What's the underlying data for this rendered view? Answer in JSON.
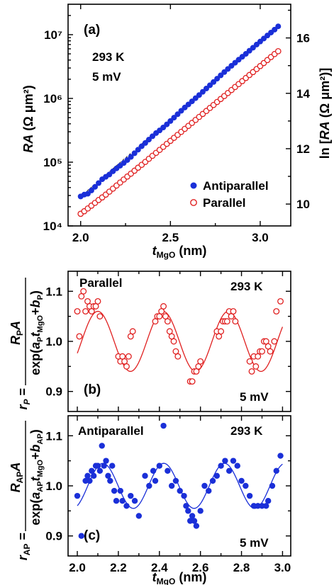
{
  "colors": {
    "red": "#e02020",
    "blue": "#1a2fd8",
    "fit_red": "#e02020",
    "fit_blue": "#1a2fd8"
  },
  "chart_data": [
    {
      "id": "a",
      "type": "scatter",
      "panel_label": "(a)",
      "annotations": [
        "293 K",
        "5 mV"
      ],
      "xlabel_main": "t",
      "xlabel_sub": "MgO",
      "xlabel_unit": " (nm)",
      "ylabel_left": "RA (Ω μm²)",
      "ylabel_right": "ln [RA (Ω μm²)]",
      "xlim": [
        1.93,
        3.17
      ],
      "ylim": [
        10000,
        30000000
      ],
      "yscale": "log",
      "x_ticks": [
        "2.0",
        "2.5",
        "3.0"
      ],
      "x_tick_values": [
        2.0,
        2.5,
        3.0
      ],
      "y_ticks_left": [
        "10⁴",
        "10⁵",
        "10⁶",
        "10⁷"
      ],
      "y_tick_values_left": [
        10000,
        100000,
        1000000,
        10000000
      ],
      "y_ticks_right": [
        "10",
        "12",
        "14",
        "16"
      ],
      "y_tick_values_right": [
        10,
        12,
        14,
        16
      ],
      "legend_position": "bottom-right",
      "series": [
        {
          "name": "Antiparallel",
          "marker": "filled-circle",
          "color": "#1a2fd8",
          "x": [
            2.0,
            2.02,
            2.04,
            2.06,
            2.08,
            2.1,
            2.12,
            2.14,
            2.16,
            2.18,
            2.2,
            2.22,
            2.24,
            2.26,
            2.28,
            2.3,
            2.32,
            2.34,
            2.36,
            2.38,
            2.4,
            2.42,
            2.44,
            2.46,
            2.48,
            2.5,
            2.52,
            2.54,
            2.56,
            2.58,
            2.6,
            2.62,
            2.64,
            2.66,
            2.68,
            2.7,
            2.72,
            2.74,
            2.76,
            2.78,
            2.8,
            2.82,
            2.84,
            2.86,
            2.88,
            2.9,
            2.92,
            2.94,
            2.96,
            2.98,
            3.0,
            3.02,
            3.04,
            3.06,
            3.08,
            3.1
          ],
          "y": [
            29000,
            31000,
            32000,
            36000,
            41000,
            47000,
            54000,
            59000,
            64000,
            72000,
            80000,
            88000,
            97000,
            108000,
            121000,
            138000,
            157000,
            178000,
            200000,
            226000,
            255000,
            286000,
            315000,
            350000,
            392000,
            442000,
            500000,
            565000,
            640000,
            720000,
            805000,
            900000,
            1010000,
            1130000,
            1270000,
            1430000,
            1610000,
            1810000,
            2040000,
            2300000,
            2590000,
            2900000,
            3250000,
            3630000,
            4050000,
            4500000,
            5000000,
            5600000,
            6250000,
            7000000,
            7800000,
            8700000,
            9700000,
            10800000,
            12000000,
            13500000
          ]
        },
        {
          "name": "Parallel",
          "marker": "open-circle",
          "color": "#e02020",
          "x": [
            2.0,
            2.02,
            2.04,
            2.06,
            2.08,
            2.1,
            2.12,
            2.14,
            2.16,
            2.18,
            2.2,
            2.22,
            2.24,
            2.26,
            2.28,
            2.3,
            2.32,
            2.34,
            2.36,
            2.38,
            2.4,
            2.42,
            2.44,
            2.46,
            2.48,
            2.5,
            2.52,
            2.54,
            2.56,
            2.58,
            2.6,
            2.62,
            2.64,
            2.66,
            2.68,
            2.7,
            2.72,
            2.74,
            2.76,
            2.78,
            2.8,
            2.82,
            2.84,
            2.86,
            2.88,
            2.9,
            2.92,
            2.94,
            2.96,
            2.98,
            3.0,
            3.02,
            3.04,
            3.06,
            3.08,
            3.1
          ],
          "y": [
            15500,
            17000,
            18800,
            20800,
            23000,
            25500,
            28000,
            31000,
            34500,
            38500,
            43000,
            48000,
            53500,
            59500,
            66000,
            73500,
            82000,
            91000,
            101000,
            113000,
            126000,
            140000,
            156000,
            174000,
            194000,
            216000,
            241000,
            268000,
            299000,
            333000,
            371000,
            413000,
            460000,
            513000,
            571000,
            636000,
            709000,
            790000,
            880000,
            980000,
            1090000,
            1215000,
            1355000,
            1510000,
            1680000,
            1870000,
            2090000,
            2330000,
            2590000,
            2890000,
            3220000,
            3590000,
            4000000,
            4460000,
            4970000,
            5500000
          ]
        }
      ]
    },
    {
      "id": "b",
      "type": "scatter",
      "panel_label": "(b)",
      "title": "Parallel",
      "annotations": [
        "293 K",
        "5 mV"
      ],
      "ylabel_prefix": "r",
      "ylabel_prefix_sub": "P",
      "ylabel_numerator": "R",
      "ylabel_numerator_sub": "P",
      "ylabel_numerator_rest": "A",
      "ylabel_denominator": "exp(a",
      "ylabel_denominator_sub1": "P",
      "ylabel_denominator_t": "t",
      "ylabel_denominator_sub2": "MgO",
      "ylabel_denominator_plus": "+b",
      "ylabel_denominator_sub3": "P",
      "ylabel_denominator_end": ")",
      "xlim": [
        1.955,
        3.04
      ],
      "ylim": [
        0.86,
        1.14
      ],
      "y_ticks": [
        "0.9",
        "1.0",
        "1.1"
      ],
      "y_tick_values": [
        0.9,
        1.0,
        1.1
      ],
      "marker": "open-circle",
      "color": "#e02020",
      "x": [
        2.0,
        2.01,
        2.02,
        2.03,
        2.04,
        2.05,
        2.06,
        2.07,
        2.08,
        2.09,
        2.1,
        2.11,
        2.2,
        2.21,
        2.22,
        2.23,
        2.24,
        2.25,
        2.26,
        2.27,
        2.38,
        2.39,
        2.4,
        2.41,
        2.42,
        2.43,
        2.44,
        2.45,
        2.46,
        2.47,
        2.48,
        2.49,
        2.55,
        2.56,
        2.57,
        2.58,
        2.59,
        2.6,
        2.68,
        2.69,
        2.7,
        2.71,
        2.72,
        2.73,
        2.74,
        2.75,
        2.76,
        2.77,
        2.84,
        2.85,
        2.86,
        2.87,
        2.88,
        2.89,
        2.9,
        2.91,
        2.92,
        2.93,
        2.94,
        2.96,
        2.97,
        2.99
      ],
      "y": [
        1.06,
        1.01,
        1.09,
        1.1,
        1.06,
        1.08,
        1.07,
        1.06,
        1.07,
        1.07,
        1.08,
        1.05,
        0.97,
        0.96,
        0.97,
        0.96,
        0.95,
        0.97,
        1.01,
        1.02,
        1.04,
        1.05,
        1.05,
        1.06,
        1.07,
        1.05,
        1.04,
        1.02,
        1.01,
        1.0,
        0.98,
        0.97,
        0.92,
        0.92,
        0.94,
        0.94,
        0.95,
        0.96,
        1.02,
        1.01,
        1.02,
        1.04,
        1.04,
        1.04,
        1.06,
        1.05,
        1.06,
        1.04,
        0.96,
        0.94,
        0.97,
        0.95,
        0.97,
        0.98,
        0.98,
        1.0,
        1.0,
        0.99,
        0.98,
        1.0,
        1.06,
        1.08
      ],
      "fit": {
        "mean": 1.0,
        "amplitude": 0.06,
        "period": 0.318,
        "peak_x": 2.1,
        "color": "#e02020"
      }
    },
    {
      "id": "c",
      "type": "scatter",
      "panel_label": "(c)",
      "title": "Antiparallel",
      "annotations": [
        "293 K",
        "5 mV"
      ],
      "ylabel_prefix": "r",
      "ylabel_prefix_sub": "AP",
      "ylabel_numerator": "R",
      "ylabel_numerator_sub": "AP",
      "ylabel_numerator_rest": "A",
      "ylabel_denominator": "exp(a",
      "ylabel_denominator_sub1": "AP",
      "ylabel_denominator_t": "t",
      "ylabel_denominator_sub2": "MgO",
      "ylabel_denominator_plus": "+b",
      "ylabel_denominator_sub3": "AP",
      "ylabel_denominator_end": ")",
      "xlabel_main": "t",
      "xlabel_sub": "MgO",
      "xlabel_unit": " (nm)",
      "xlim": [
        1.955,
        3.04
      ],
      "ylim": [
        0.86,
        1.14
      ],
      "x_ticks": [
        "2.0",
        "2.2",
        "2.4",
        "2.6",
        "2.8",
        "3.0"
      ],
      "x_tick_values": [
        2.0,
        2.2,
        2.4,
        2.6,
        2.8,
        3.0
      ],
      "y_ticks": [
        "0.9",
        "1.0",
        "1.1"
      ],
      "y_tick_values": [
        0.9,
        1.0,
        1.1
      ],
      "marker": "filled-circle",
      "color": "#1a2fd8",
      "x": [
        2.0,
        2.02,
        2.04,
        2.05,
        2.06,
        2.07,
        2.08,
        2.09,
        2.1,
        2.11,
        2.12,
        2.13,
        2.14,
        2.15,
        2.16,
        2.17,
        2.18,
        2.19,
        2.21,
        2.22,
        2.24,
        2.26,
        2.28,
        2.3,
        2.33,
        2.35,
        2.37,
        2.38,
        2.4,
        2.42,
        2.44,
        2.46,
        2.48,
        2.5,
        2.52,
        2.53,
        2.54,
        2.55,
        2.56,
        2.57,
        2.58,
        2.6,
        2.62,
        2.64,
        2.66,
        2.68,
        2.7,
        2.72,
        2.74,
        2.76,
        2.78,
        2.8,
        2.82,
        2.84,
        2.86,
        2.88,
        2.9,
        2.92,
        2.93,
        2.95,
        2.97,
        2.99
      ],
      "y": [
        0.98,
        0.9,
        1.01,
        1.02,
        1.01,
        1.03,
        1.02,
        1.04,
        1.04,
        1.03,
        1.08,
        1.04,
        1.05,
        1.02,
        1.01,
        1.04,
        0.99,
        0.97,
        0.99,
        0.97,
        0.96,
        0.98,
        0.97,
        0.94,
        1.02,
        1.0,
        1.03,
        1.01,
        1.04,
        1.12,
        1.03,
        1.0,
        1.01,
        0.99,
        0.98,
        0.96,
        0.95,
        0.93,
        0.94,
        0.93,
        0.92,
        0.95,
        1.0,
        0.99,
        1.01,
        1.02,
        1.04,
        1.05,
        1.03,
        1.05,
        1.04,
        1.01,
        1.0,
        0.98,
        0.96,
        0.96,
        0.96,
        0.96,
        0.97,
        1.0,
        1.03,
        1.06
      ],
      "fit": {
        "mean": 1.0,
        "amplitude": 0.045,
        "period": 0.296,
        "peak_x": 2.125,
        "color": "#1a2fd8"
      }
    }
  ]
}
